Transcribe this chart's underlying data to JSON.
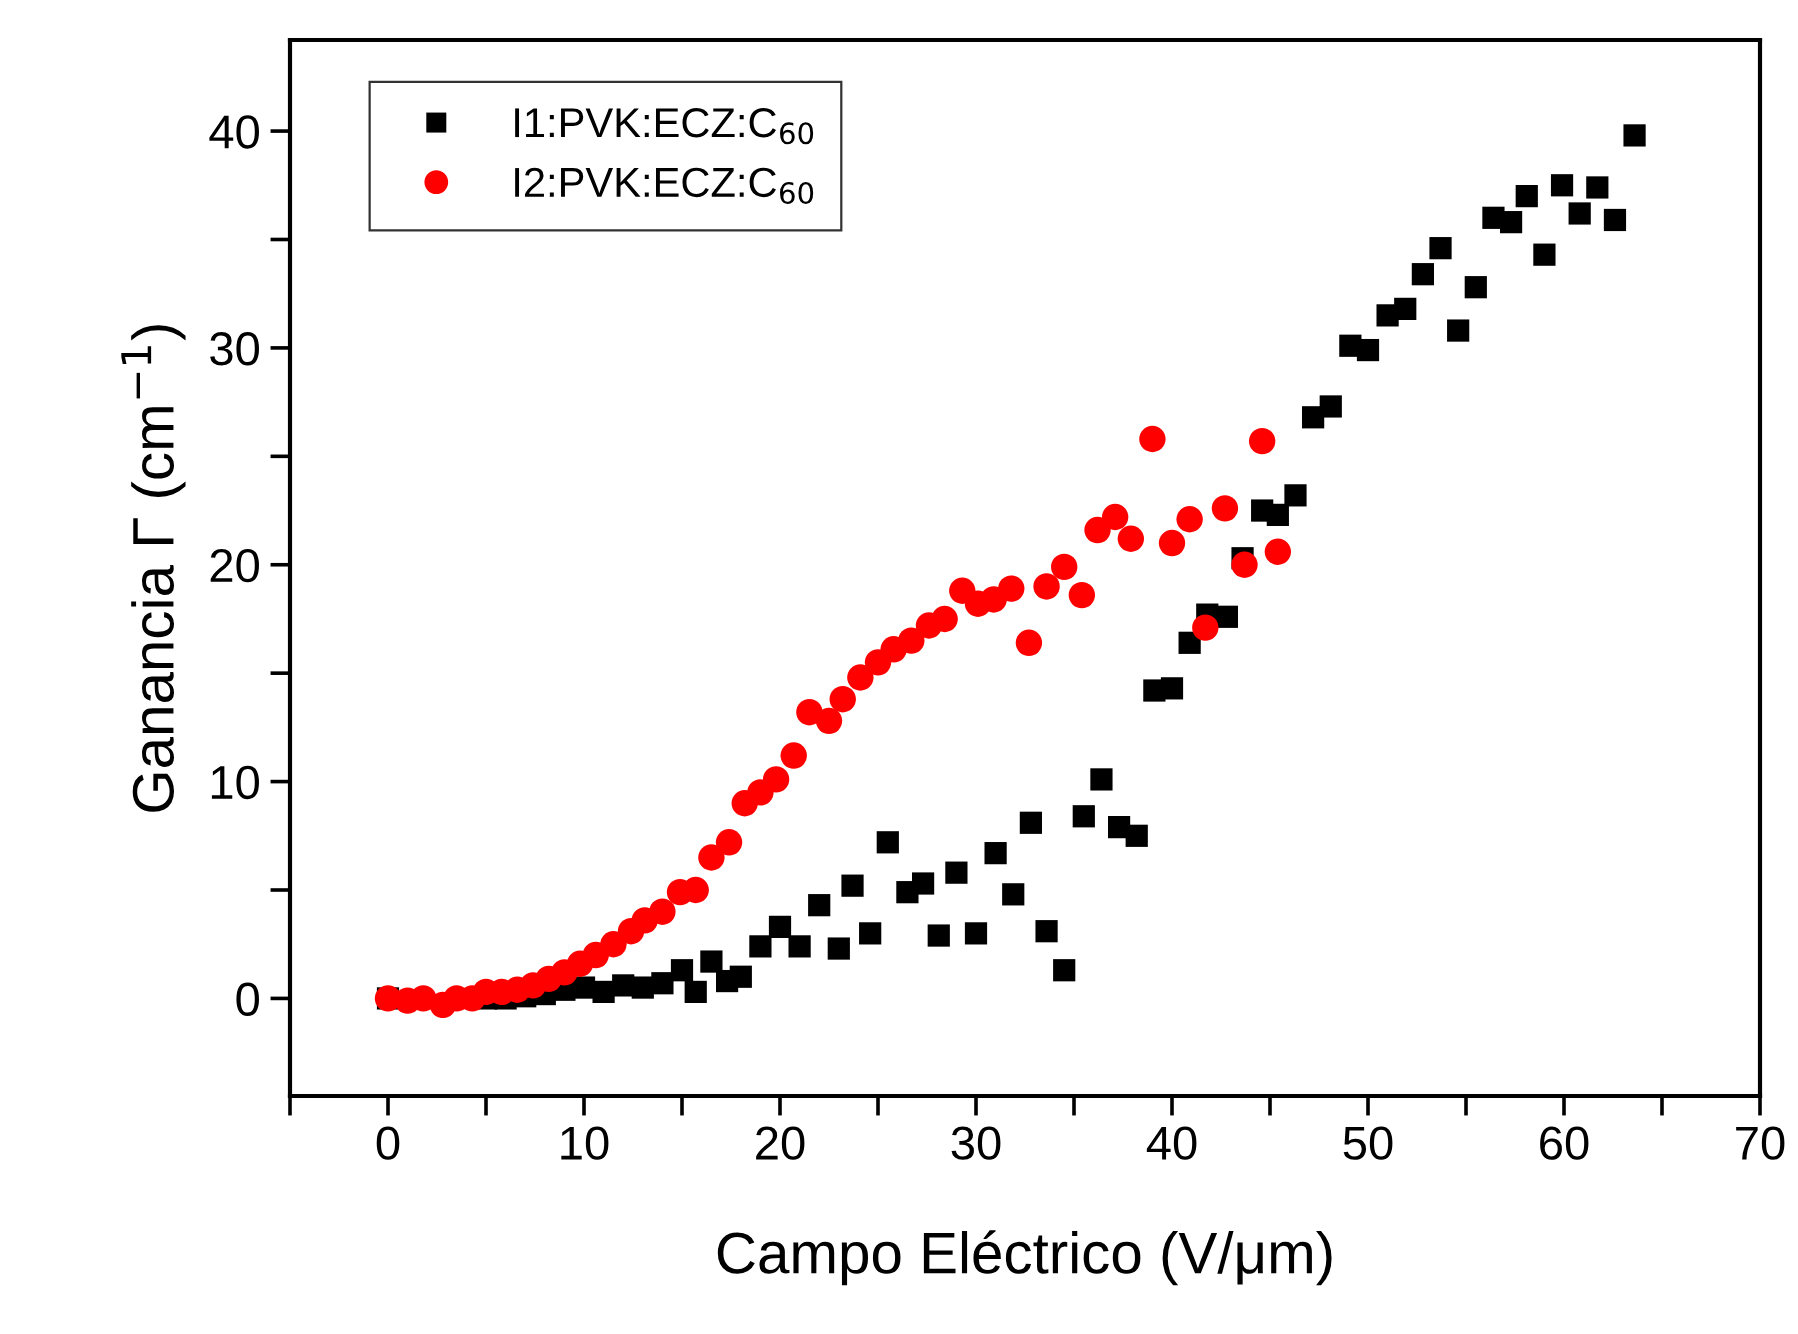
{
  "chart_data": {
    "type": "scatter",
    "xlabel": "Campo Eléctrico (V/μm)",
    "ylabel": "Ganancia Γ (cm$^{−1}$)",
    "xlim": [
      -5,
      70
    ],
    "ylim": [
      -4.5,
      44.2
    ],
    "xticks": [
      {
        "value": -5,
        "label": null
      },
      0,
      {
        "value": 5,
        "label": null
      },
      10,
      {
        "value": 15,
        "label": null
      },
      20,
      {
        "value": 25,
        "label": null
      },
      30,
      {
        "value": 35,
        "label": null
      },
      40,
      {
        "value": 45,
        "label": null
      },
      50,
      {
        "value": 55,
        "label": null
      },
      60,
      {
        "value": 65,
        "label": null
      },
      70
    ],
    "yticks": [
      0,
      {
        "value": 5,
        "label": null
      },
      10,
      {
        "value": 15,
        "label": null
      },
      20,
      {
        "value": 25,
        "label": null
      },
      30,
      {
        "value": 35,
        "label": null
      },
      40
    ],
    "grid": false,
    "legend": "top left",
    "series": [
      {
        "name": "I1:PVK:ECZ:C$_{60}$",
        "color": "#000000",
        "marker": "square",
        "x": [
          0,
          1,
          2,
          3,
          4,
          5,
          6,
          7,
          8,
          9,
          10,
          11,
          12,
          13,
          14,
          15,
          15.7,
          16.5,
          17.3,
          18,
          19,
          20,
          21,
          22,
          23,
          23.7,
          24.6,
          25.5,
          26.5,
          27.3,
          28.1,
          29,
          30,
          31,
          31.9,
          32.8,
          33.6,
          34.5,
          35.5,
          36.4,
          37.3,
          38.2,
          39.1,
          40,
          40.9,
          41.8,
          42.8,
          43.6,
          44.6,
          45.4,
          46.3,
          47.2,
          48.1,
          49.1,
          50,
          51,
          51.9,
          52.8,
          53.7,
          54.6,
          55.5,
          56.4,
          57.3,
          58.1,
          59,
          59.9,
          60.8,
          61.7,
          62.6,
          63.6
        ],
        "values": [
          0,
          null,
          null,
          null,
          null,
          0,
          0,
          0.1,
          0.2,
          0.4,
          0.5,
          0.3,
          0.6,
          0.5,
          0.7,
          1.3,
          0.3,
          1.7,
          0.8,
          1.0,
          2.4,
          3.3,
          2.4,
          4.3,
          2.3,
          5.2,
          3.0,
          7.2,
          4.9,
          5.3,
          2.9,
          5.8,
          3.0,
          6.7,
          4.8,
          8.1,
          3.1,
          1.3,
          8.4,
          10.1,
          7.9,
          7.5,
          14.2,
          14.3,
          16.4,
          17.7,
          17.6,
          20.3,
          22.5,
          22.3,
          23.2,
          26.8,
          27.3,
          30.1,
          29.9,
          31.5,
          31.8,
          33.4,
          34.6,
          30.8,
          32.8,
          36.0,
          35.8,
          37.0,
          34.3,
          37.5,
          36.2,
          37.4,
          35.9,
          39.8
        ]
      },
      {
        "name": "I2:PVK:ECZ:C$_{60}$",
        "color": "#ff0000",
        "marker": "circle",
        "x": [
          0,
          0.5,
          1,
          1.8,
          2.8,
          3.5,
          4.3,
          5,
          5.8,
          6.6,
          7.4,
          8.2,
          9,
          9.8,
          10.6,
          11.5,
          12.4,
          13.1,
          14,
          14.9,
          15.7,
          16.5,
          17.4,
          18.2,
          19,
          19.8,
          20.7,
          21.5,
          22.5,
          23.2,
          24.1,
          25,
          25.8,
          26.7,
          27.6,
          28.4,
          29.3,
          30.1,
          30.9,
          31.8,
          32.7,
          33.6,
          34.5,
          35.4,
          36.2,
          37.1,
          37.9,
          39,
          40,
          40.9,
          41.7,
          42.7,
          43.7,
          44.6,
          45.4
        ],
        "values": [
          0,
          null,
          -0.1,
          0,
          -0.3,
          0,
          0,
          0.3,
          0.3,
          0.4,
          0.6,
          0.9,
          1.2,
          1.6,
          2.0,
          2.5,
          3.1,
          3.6,
          4.0,
          4.9,
          5.0,
          6.5,
          7.2,
          9.0,
          9.5,
          10.1,
          11.2,
          13.2,
          12.8,
          13.8,
          14.8,
          15.5,
          16.1,
          16.5,
          17.2,
          17.5,
          18.8,
          18.2,
          18.4,
          18.9,
          16.4,
          19.0,
          19.9,
          18.6,
          21.6,
          22.2,
          21.2,
          25.8,
          21.0,
          22.1,
          17.1,
          22.6,
          20.0,
          25.7,
          20.6
        ]
      }
    ]
  }
}
